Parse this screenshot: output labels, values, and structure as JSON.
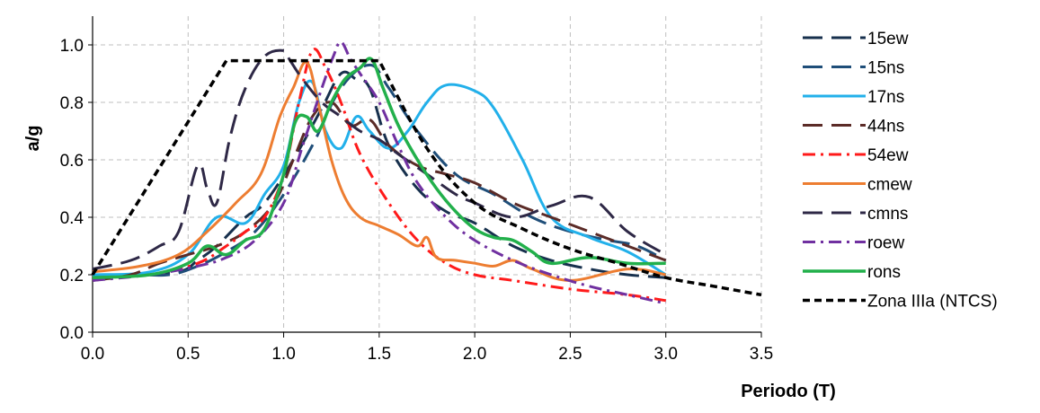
{
  "chart_data": {
    "type": "line",
    "title": "",
    "xlabel": "Periodo (T)",
    "ylabel": "a/g",
    "xlim": [
      0,
      3.5
    ],
    "ylim": [
      0,
      1.1
    ],
    "xticks": [
      "0.0",
      "0.5",
      "1.0",
      "1.5",
      "2.0",
      "2.5",
      "3.0",
      "3.5"
    ],
    "yticks": [
      "0.0",
      "0.2",
      "0.4",
      "0.6",
      "0.8",
      "1.0"
    ],
    "grid": true,
    "legend_position": "right",
    "series": [
      {
        "name": "15ew",
        "color": "#17304d",
        "dash": "long-dash",
        "width": 3,
        "x": [
          0,
          0.2,
          0.45,
          0.55,
          0.65,
          0.8,
          0.9,
          1.05,
          1.2,
          1.3,
          1.38,
          1.45,
          1.55,
          1.7,
          1.85,
          2.0,
          2.2,
          2.4,
          2.6,
          2.8,
          3.0
        ],
        "y": [
          0.2,
          0.2,
          0.21,
          0.25,
          0.3,
          0.4,
          0.45,
          0.6,
          0.78,
          0.9,
          0.88,
          0.85,
          0.65,
          0.5,
          0.42,
          0.38,
          0.3,
          0.25,
          0.22,
          0.2,
          0.19
        ]
      },
      {
        "name": "15ns",
        "color": "#1f4e79",
        "dash": "long-dash",
        "width": 3,
        "x": [
          0,
          0.2,
          0.4,
          0.55,
          0.7,
          0.85,
          1.0,
          1.15,
          1.3,
          1.45,
          1.55,
          1.7,
          1.9,
          2.1,
          2.3,
          2.5,
          2.7,
          2.85,
          3.0
        ],
        "y": [
          0.19,
          0.2,
          0.2,
          0.23,
          0.28,
          0.35,
          0.48,
          0.65,
          0.85,
          0.93,
          0.85,
          0.7,
          0.55,
          0.48,
          0.4,
          0.35,
          0.32,
          0.3,
          0.25
        ]
      },
      {
        "name": "17ns",
        "color": "#22b0ea",
        "dash": "solid",
        "width": 3,
        "x": [
          0,
          0.3,
          0.5,
          0.65,
          0.8,
          0.9,
          1.0,
          1.08,
          1.15,
          1.22,
          1.3,
          1.38,
          1.45,
          1.55,
          1.65,
          1.75,
          1.85,
          2.0,
          2.1,
          2.25,
          2.4,
          2.6,
          2.8,
          3.0
        ],
        "y": [
          0.2,
          0.21,
          0.27,
          0.4,
          0.38,
          0.48,
          0.58,
          0.8,
          0.87,
          0.7,
          0.64,
          0.75,
          0.7,
          0.64,
          0.7,
          0.8,
          0.86,
          0.84,
          0.78,
          0.6,
          0.4,
          0.33,
          0.28,
          0.2
        ]
      },
      {
        "name": "44ns",
        "color": "#5b2b27",
        "dash": "long-dash",
        "width": 3,
        "x": [
          0,
          0.2,
          0.35,
          0.5,
          0.65,
          0.8,
          0.95,
          1.05,
          1.15,
          1.25,
          1.35,
          1.45,
          1.55,
          1.7,
          1.85,
          2.0,
          2.2,
          2.4,
          2.6,
          2.8,
          3.0
        ],
        "y": [
          0.18,
          0.2,
          0.24,
          0.27,
          0.3,
          0.35,
          0.45,
          0.6,
          0.75,
          0.8,
          0.72,
          0.74,
          0.65,
          0.58,
          0.55,
          0.52,
          0.45,
          0.4,
          0.35,
          0.3,
          0.25
        ]
      },
      {
        "name": "54ew",
        "color": "#ff1a1a",
        "dash": "dash-dot",
        "width": 3,
        "x": [
          0,
          0.3,
          0.55,
          0.7,
          0.8,
          0.9,
          1.0,
          1.08,
          1.15,
          1.22,
          1.3,
          1.4,
          1.55,
          1.7,
          1.85,
          2.0,
          2.2,
          2.5,
          2.8,
          3.0
        ],
        "y": [
          0.19,
          0.2,
          0.24,
          0.3,
          0.35,
          0.4,
          0.55,
          0.8,
          0.98,
          0.92,
          0.8,
          0.62,
          0.45,
          0.32,
          0.24,
          0.2,
          0.18,
          0.15,
          0.13,
          0.11
        ]
      },
      {
        "name": "cmew",
        "color": "#ed7d31",
        "dash": "solid",
        "width": 3,
        "x": [
          0,
          0.25,
          0.45,
          0.6,
          0.75,
          0.88,
          0.98,
          1.05,
          1.12,
          1.18,
          1.25,
          1.32,
          1.4,
          1.5,
          1.6,
          1.7,
          1.75,
          1.8,
          1.9,
          2.0,
          2.1,
          2.2,
          2.3,
          2.5,
          2.8,
          3.0
        ],
        "y": [
          0.21,
          0.23,
          0.27,
          0.35,
          0.45,
          0.55,
          0.75,
          0.85,
          0.94,
          0.8,
          0.6,
          0.47,
          0.4,
          0.37,
          0.34,
          0.3,
          0.33,
          0.26,
          0.25,
          0.24,
          0.23,
          0.25,
          0.22,
          0.18,
          0.22,
          0.2
        ]
      },
      {
        "name": "cmns",
        "color": "#2e2846",
        "dash": "long-dash",
        "width": 3,
        "x": [
          0,
          0.2,
          0.35,
          0.45,
          0.55,
          0.6,
          0.65,
          0.72,
          0.8,
          0.9,
          1.0,
          1.03,
          1.1,
          1.2,
          1.3,
          1.4,
          1.5,
          1.6,
          1.75,
          1.9,
          2.0,
          2.2,
          2.4,
          2.6,
          2.8,
          3.0
        ],
        "y": [
          0.22,
          0.25,
          0.3,
          0.35,
          0.58,
          0.5,
          0.45,
          0.68,
          0.85,
          0.96,
          0.98,
          0.95,
          0.88,
          0.8,
          0.75,
          0.7,
          0.67,
          0.62,
          0.55,
          0.48,
          0.45,
          0.4,
          0.44,
          0.47,
          0.35,
          0.27
        ]
      },
      {
        "name": "roew",
        "color": "#7030a0",
        "dash": "dash-dot",
        "width": 3,
        "x": [
          0,
          0.3,
          0.55,
          0.7,
          0.85,
          1.0,
          1.1,
          1.2,
          1.26,
          1.3,
          1.35,
          1.4,
          1.5,
          1.6,
          1.7,
          1.85,
          2.0,
          2.2,
          2.4,
          2.6,
          2.8,
          3.0
        ],
        "y": [
          0.18,
          0.2,
          0.23,
          0.26,
          0.32,
          0.45,
          0.65,
          0.85,
          0.96,
          1.01,
          0.95,
          0.9,
          0.8,
          0.65,
          0.52,
          0.4,
          0.32,
          0.25,
          0.2,
          0.16,
          0.13,
          0.1
        ]
      },
      {
        "name": "rons",
        "color": "#22b04b",
        "dash": "solid",
        "width": 3.5,
        "x": [
          0,
          0.3,
          0.5,
          0.6,
          0.7,
          0.8,
          0.9,
          1.0,
          1.06,
          1.12,
          1.18,
          1.25,
          1.32,
          1.4,
          1.46,
          1.52,
          1.6,
          1.7,
          1.8,
          1.9,
          2.0,
          2.1,
          2.2,
          2.3,
          2.4,
          2.6,
          2.8,
          3.0
        ],
        "y": [
          0.19,
          0.2,
          0.24,
          0.3,
          0.27,
          0.32,
          0.36,
          0.55,
          0.73,
          0.75,
          0.7,
          0.8,
          0.88,
          0.92,
          0.95,
          0.85,
          0.72,
          0.6,
          0.5,
          0.42,
          0.36,
          0.33,
          0.32,
          0.28,
          0.24,
          0.26,
          0.24,
          0.24
        ]
      },
      {
        "name": "Zona IIIa (NTCS)",
        "color": "#000000",
        "dash": "short-dash",
        "width": 3.5,
        "x": [
          0,
          0.7,
          1.5,
          1.75,
          2.0,
          2.25,
          2.5,
          2.75,
          3.0,
          3.25,
          3.5
        ],
        "y": [
          0.2,
          0.945,
          0.945,
          0.64,
          0.45,
          0.36,
          0.29,
          0.24,
          0.19,
          0.16,
          0.13
        ]
      }
    ]
  }
}
